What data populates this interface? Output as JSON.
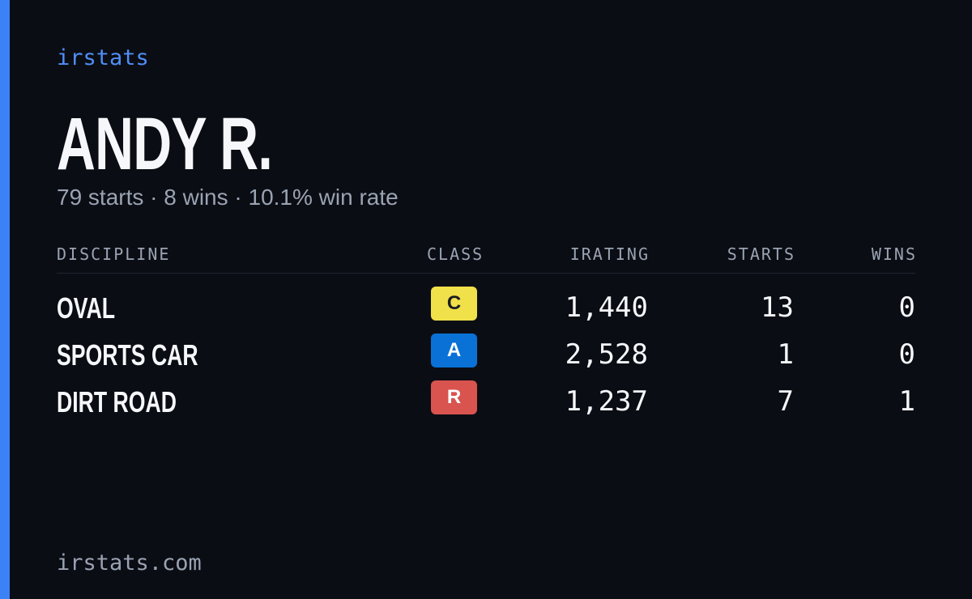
{
  "brand": "irstats",
  "driver": {
    "name": "ANDY R.",
    "summary": "79 starts · 8 wins · 10.1% win rate"
  },
  "table": {
    "headers": [
      "DISCIPLINE",
      "CLASS",
      "IRATING",
      "STARTS",
      "WINS"
    ],
    "rows": [
      [
        "OVAL",
        "C",
        "1,440",
        "13",
        "0"
      ],
      [
        "SPORTS CAR",
        "A",
        "2,528",
        "1",
        "0"
      ],
      [
        "DIRT ROAD",
        "R",
        "1,237",
        "7",
        "1"
      ]
    ]
  },
  "footer": "irstats.com"
}
